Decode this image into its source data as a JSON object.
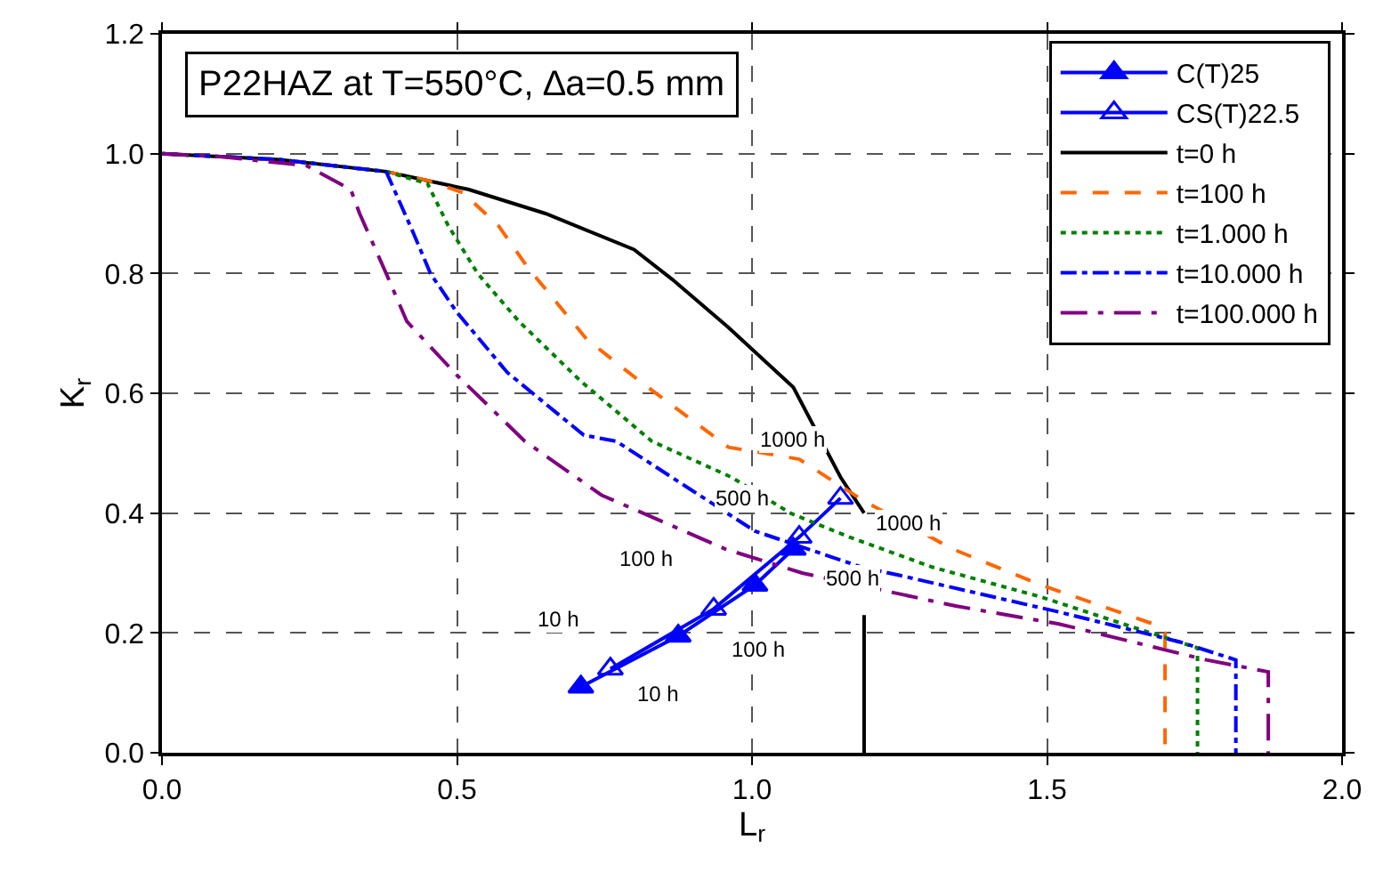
{
  "chart_data": {
    "type": "line",
    "title": "P22HAZ at T=550°C, ∆a=0.5 mm",
    "xlabel": "L$_{r}$",
    "ylabel": "K$_{r}$",
    "xlim": [
      0,
      2.0
    ],
    "ylim": [
      0,
      1.2
    ],
    "xticks": [
      {
        "value": 0,
        "label": "0.0"
      },
      {
        "value": 0.5,
        "label": "0.5"
      },
      {
        "value": 1.0,
        "label": "1.0"
      },
      {
        "value": 1.5,
        "label": "1.5"
      },
      {
        "value": 2.0,
        "label": "2.0"
      }
    ],
    "yticks": [
      {
        "value": 0,
        "label": "0.0"
      },
      {
        "value": 0.2,
        "label": "0.2"
      },
      {
        "value": 0.4,
        "label": "0.4"
      },
      {
        "value": 0.6,
        "label": "0.6"
      },
      {
        "value": 0.8,
        "label": "0.8"
      },
      {
        "value": 1.0,
        "label": "1.0"
      },
      {
        "value": 1.2,
        "label": "1.2"
      }
    ],
    "grid": true,
    "legend": "top right",
    "series": [
      {
        "name": "C(T)25",
        "color": "#0000ff",
        "marker": "triangle",
        "line_style": "solid",
        "x": [
          0.71,
          0.875,
          1.005,
          1.07
        ],
        "values": [
          0.11,
          0.195,
          0.28,
          0.34
        ]
      },
      {
        "name": "CS(T)22.5",
        "color": "#0000ff",
        "marker": "triangle-open",
        "line_style": "solid",
        "x": [
          0.76,
          0.935,
          1.08,
          1.15
        ],
        "values": [
          0.14,
          0.24,
          0.36,
          0.425
        ]
      },
      {
        "name": "t=0 h",
        "color": "#000000",
        "marker": "none",
        "line_style": "solid",
        "x": [
          0,
          0.2,
          0.38,
          0.45,
          0.52,
          0.65,
          0.8,
          0.865,
          0.96,
          1.07,
          1.15,
          1.19,
          null,
          1.19,
          1.19
        ],
        "values": [
          1.0,
          0.99,
          0.97,
          0.955,
          0.94,
          0.9,
          0.84,
          0.79,
          0.71,
          0.61,
          0.46,
          0.4,
          null,
          0.23,
          0.0
        ]
      },
      {
        "name": "t=100 h",
        "color": "#ff6600",
        "marker": "none",
        "line_style": "dashed",
        "x": [
          0,
          0.2,
          0.38,
          0.45,
          0.51,
          0.57,
          0.62,
          0.72,
          0.81,
          0.96,
          1.08,
          1.19,
          1.34,
          1.49,
          1.68,
          1.7,
          1.7
        ],
        "values": [
          1.0,
          0.99,
          0.97,
          0.955,
          0.935,
          0.88,
          0.81,
          0.69,
          0.62,
          0.51,
          0.49,
          0.42,
          0.34,
          0.28,
          0.215,
          0.2,
          0.0
        ]
      },
      {
        "name": "t=1.000 h",
        "color": "#008000",
        "marker": "none",
        "line_style": "dotted",
        "x": [
          0,
          0.2,
          0.38,
          0.45,
          0.485,
          0.535,
          0.605,
          0.71,
          0.83,
          0.965,
          1.065,
          1.165,
          1.305,
          1.49,
          1.66,
          1.755,
          1.755
        ],
        "values": [
          1.0,
          0.99,
          0.97,
          0.95,
          0.88,
          0.8,
          0.72,
          0.62,
          0.52,
          0.46,
          0.4,
          0.36,
          0.31,
          0.26,
          0.205,
          0.175,
          0.0
        ]
      },
      {
        "name": "t=10.000 h",
        "color": "#0000ff",
        "marker": "none",
        "line_style": "dashdot",
        "x": [
          0,
          0.2,
          0.38,
          0.425,
          0.455,
          0.5,
          0.585,
          0.715,
          0.77,
          0.895,
          1.005,
          1.185,
          1.255,
          1.52,
          1.725,
          1.82,
          1.82
        ],
        "values": [
          1.0,
          0.99,
          0.97,
          0.87,
          0.8,
          0.735,
          0.635,
          0.53,
          0.52,
          0.44,
          0.37,
          0.31,
          0.295,
          0.235,
          0.185,
          0.155,
          0.0
        ]
      },
      {
        "name": "t=100.000 h",
        "color": "#800080",
        "marker": "none",
        "line_style": "dashdotdot",
        "x": [
          0,
          0.1,
          0.245,
          0.32,
          0.335,
          0.38,
          0.415,
          0.5,
          0.615,
          0.745,
          0.955,
          1.085,
          1.345,
          1.52,
          1.77,
          1.875,
          1.875
        ],
        "values": [
          1.0,
          0.995,
          0.98,
          0.94,
          0.9,
          0.8,
          0.72,
          0.63,
          0.52,
          0.43,
          0.34,
          0.3,
          0.245,
          0.215,
          0.155,
          0.135,
          0.0
        ]
      }
    ],
    "annotations": [
      "1000 h",
      "500 h",
      "1000 h",
      "500 h",
      "100 h",
      "10 h",
      "100 h",
      "10 h"
    ]
  }
}
